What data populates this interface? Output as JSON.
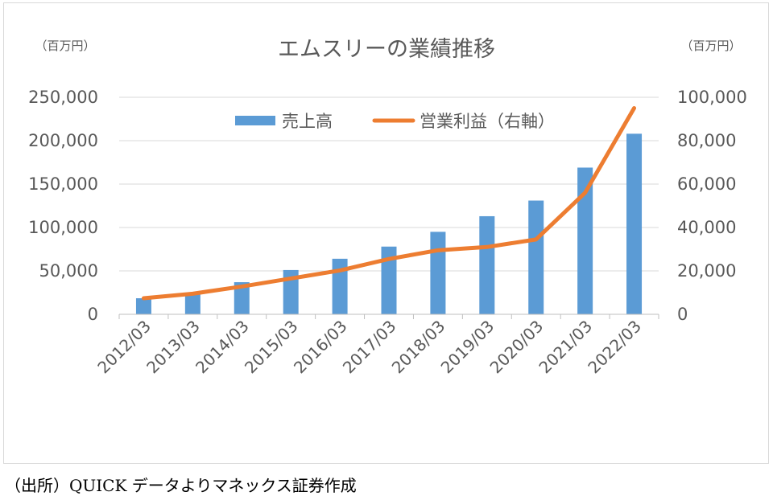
{
  "chart_data": {
    "type": "bar+line",
    "title": "エムスリーの業績推移",
    "left_unit": "（百万円）",
    "right_unit": "（百万円）",
    "categories": [
      "2012/03",
      "2013/03",
      "2014/03",
      "2015/03",
      "2016/03",
      "2017/03",
      "2018/03",
      "2019/03",
      "2020/03",
      "2021/03",
      "2022/03"
    ],
    "series": [
      {
        "name": "売上高",
        "type": "bar",
        "axis": "left",
        "color": "#5b9bd5",
        "values": [
          18500,
          25000,
          37000,
          51000,
          64000,
          78000,
          95000,
          113000,
          131000,
          169000,
          208000
        ]
      },
      {
        "name": "営業利益（右軸）",
        "type": "line",
        "axis": "right",
        "color": "#ed7d31",
        "values": [
          7400,
          9500,
          12800,
          16500,
          20200,
          25500,
          29500,
          31000,
          34500,
          56000,
          95000
        ]
      }
    ],
    "left_axis": {
      "ylim": [
        0,
        250000
      ],
      "ticks": [
        "0",
        "50,000",
        "100,000",
        "150,000",
        "200,000",
        "250,000"
      ]
    },
    "right_axis": {
      "ylim": [
        0,
        100000
      ],
      "ticks": [
        "0",
        "20,000",
        "40,000",
        "60,000",
        "80,000",
        "100,000"
      ]
    },
    "legend_position": "top"
  },
  "source": "（出所）QUICK データよりマネックス証券作成"
}
